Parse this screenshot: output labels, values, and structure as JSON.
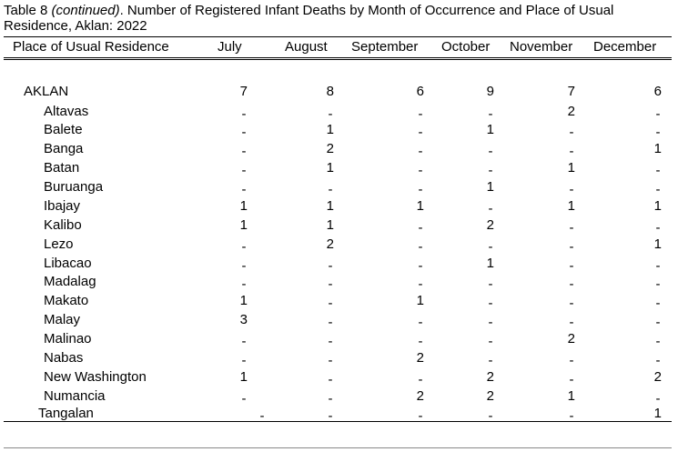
{
  "title": {
    "prefix": "Table 8 ",
    "italic": "(continued)",
    "rest": ". Number of Registered Infant Deaths by Month of Occurrence and Place of Usual Residence, Aklan: 2022"
  },
  "columns": [
    "Place of Usual Residence",
    "July",
    "August",
    "September",
    "October",
    "November",
    "December"
  ],
  "rows": [
    {
      "name": "AKLAN",
      "values": [
        "7",
        "8",
        "6",
        "9",
        "7",
        "6"
      ]
    },
    {
      "name": "Altavas",
      "values": [
        "-",
        "-",
        "-",
        "-",
        "2",
        "-"
      ]
    },
    {
      "name": "Balete",
      "values": [
        "-",
        "1",
        "-",
        "1",
        "-",
        "-"
      ]
    },
    {
      "name": "Banga",
      "values": [
        "-",
        "2",
        "-",
        "-",
        "-",
        "1"
      ]
    },
    {
      "name": "Batan",
      "values": [
        "-",
        "1",
        "-",
        "-",
        "1",
        "-"
      ]
    },
    {
      "name": "Buruanga",
      "values": [
        "-",
        "-",
        "-",
        "1",
        "-",
        "-"
      ]
    },
    {
      "name": "Ibajay",
      "values": [
        "1",
        "1",
        "1",
        "-",
        "1",
        "1"
      ]
    },
    {
      "name": "Kalibo",
      "values": [
        "1",
        "1",
        "-",
        "2",
        "-",
        "-"
      ]
    },
    {
      "name": "Lezo",
      "values": [
        "-",
        "2",
        "-",
        "-",
        "-",
        "1"
      ]
    },
    {
      "name": "Libacao",
      "values": [
        "-",
        "-",
        "-",
        "1",
        "-",
        "-"
      ]
    },
    {
      "name": "Madalag",
      "values": [
        "-",
        "-",
        "-",
        "-",
        "-",
        "-"
      ]
    },
    {
      "name": "Makato",
      "values": [
        "1",
        "-",
        "1",
        "-",
        "-",
        "-"
      ]
    },
    {
      "name": "Malay",
      "values": [
        "3",
        "-",
        "-",
        "-",
        "-",
        "-"
      ]
    },
    {
      "name": "Malinao",
      "values": [
        "-",
        "-",
        "-",
        "-",
        "2",
        "-"
      ]
    },
    {
      "name": "Nabas",
      "values": [
        "-",
        "-",
        "2",
        "-",
        "-",
        "-"
      ]
    },
    {
      "name": "New Washington",
      "values": [
        "1",
        "-",
        "-",
        "2",
        "-",
        "2"
      ]
    },
    {
      "name": "Numancia",
      "values": [
        "-",
        "-",
        "2",
        "2",
        "1",
        "-"
      ]
    },
    {
      "name": "Tangalan",
      "values": [
        "-",
        "-",
        "-",
        "-",
        "-",
        "1"
      ]
    }
  ]
}
